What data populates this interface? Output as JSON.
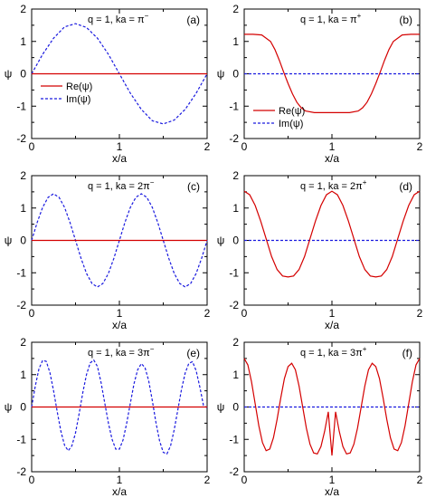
{
  "chart_data": [
    {
      "type": "line",
      "panel_label": "(a)",
      "title_prefix": "q = 1, ka = ",
      "title_math": "π",
      "title_sup": "−",
      "xlabel": "x/a",
      "ylabel": "ψ",
      "xlim": [
        0,
        2
      ],
      "ylim": [
        -2,
        2
      ],
      "xticks": [
        "0",
        "1",
        "2"
      ],
      "yticks": [
        "2",
        "1",
        "0",
        "-1",
        "-2"
      ],
      "legend": {
        "show": true,
        "position": "center-left"
      },
      "series": [
        {
          "name": "Re(ψ)",
          "color": "#d40000",
          "style": "solid",
          "x": [
            0,
            0.25,
            0.5,
            0.75,
            1,
            1.25,
            1.5,
            1.75,
            2
          ],
          "y": [
            0,
            0,
            0,
            0,
            0,
            0,
            0,
            0,
            0
          ]
        },
        {
          "name": "Im(ψ)",
          "color": "#1a1adf",
          "style": "dashed",
          "x": [
            0,
            0.125,
            0.25,
            0.375,
            0.5,
            0.625,
            0.75,
            0.875,
            1,
            1.125,
            1.25,
            1.375,
            1.5,
            1.625,
            1.75,
            1.875,
            2
          ],
          "y": [
            0,
            0.6,
            1.1,
            1.45,
            1.55,
            1.43,
            1.1,
            0.6,
            0,
            -0.6,
            -1.1,
            -1.45,
            -1.55,
            -1.43,
            -1.1,
            -0.6,
            0
          ]
        }
      ]
    },
    {
      "type": "line",
      "panel_label": "(b)",
      "title_prefix": "q = 1, ka = ",
      "title_math": "π",
      "title_sup": "+",
      "xlabel": "x/a",
      "ylabel": "ψ",
      "xlim": [
        0,
        2
      ],
      "ylim": [
        -2,
        2
      ],
      "xticks": [
        "0",
        "1",
        "2"
      ],
      "yticks": [
        "2",
        "1",
        "0",
        "-1",
        "-2"
      ],
      "legend": {
        "show": true,
        "position": "bottom-left"
      },
      "series": [
        {
          "name": "Re(ψ)",
          "color": "#d40000",
          "style": "solid",
          "x": [
            0,
            0.1,
            0.2,
            0.3,
            0.35,
            0.4,
            0.45,
            0.5,
            0.55,
            0.6,
            0.65,
            0.7,
            0.8,
            0.9,
            1,
            1.1,
            1.2,
            1.3,
            1.35,
            1.4,
            1.45,
            1.5,
            1.55,
            1.6,
            1.65,
            1.7,
            1.8,
            1.9,
            2
          ],
          "y": [
            1.22,
            1.22,
            1.2,
            1.0,
            0.75,
            0.42,
            0.05,
            -0.3,
            -0.62,
            -0.88,
            -1.05,
            -1.15,
            -1.2,
            -1.2,
            -1.2,
            -1.2,
            -1.2,
            -1.15,
            -1.05,
            -0.88,
            -0.62,
            -0.3,
            0.05,
            0.42,
            0.75,
            1.0,
            1.2,
            1.22,
            1.22
          ]
        },
        {
          "name": "Im(ψ)",
          "color": "#1a1adf",
          "style": "dashed",
          "x": [
            0,
            0.5,
            1,
            1.5,
            2
          ],
          "y": [
            0,
            0,
            0,
            0,
            0
          ]
        }
      ]
    },
    {
      "type": "line",
      "panel_label": "(c)",
      "title_prefix": "q = 1, ka = ",
      "title_math": "2π",
      "title_sup": "−",
      "xlabel": "x/a",
      "ylabel": "ψ",
      "xlim": [
        0,
        2
      ],
      "ylim": [
        -2,
        2
      ],
      "xticks": [
        "0",
        "1",
        "2"
      ],
      "yticks": [
        "2",
        "1",
        "0",
        "-1",
        "-2"
      ],
      "legend": {
        "show": false
      },
      "series": [
        {
          "name": "Re(ψ)",
          "color": "#d40000",
          "style": "solid",
          "x": [
            0,
            1,
            2
          ],
          "y": [
            0,
            0,
            0
          ]
        },
        {
          "name": "Im(ψ)",
          "color": "#1a1adf",
          "style": "dashed",
          "x": [
            0,
            0.0625,
            0.125,
            0.1875,
            0.25,
            0.3125,
            0.375,
            0.4375,
            0.5,
            0.5625,
            0.625,
            0.6875,
            0.75,
            0.8125,
            0.875,
            0.9375,
            1,
            1.0625,
            1.125,
            1.1875,
            1.25,
            1.3125,
            1.375,
            1.4375,
            1.5,
            1.5625,
            1.625,
            1.6875,
            1.75,
            1.8125,
            1.875,
            1.9375,
            2
          ],
          "y": [
            0,
            0.55,
            1.02,
            1.33,
            1.44,
            1.33,
            1.02,
            0.55,
            0,
            -0.55,
            -1.02,
            -1.33,
            -1.44,
            -1.33,
            -1.02,
            -0.55,
            0,
            0.55,
            1.02,
            1.33,
            1.44,
            1.33,
            1.02,
            0.55,
            0,
            -0.55,
            -1.02,
            -1.33,
            -1.44,
            -1.33,
            -1.02,
            -0.55,
            0
          ]
        }
      ]
    },
    {
      "type": "line",
      "panel_label": "(d)",
      "title_prefix": "q = 1, ka = ",
      "title_math": "2π",
      "title_sup": "+",
      "xlabel": "x/a",
      "ylabel": "ψ",
      "xlim": [
        0,
        2
      ],
      "ylim": [
        -2,
        2
      ],
      "xticks": [
        "0",
        "1",
        "2"
      ],
      "yticks": [
        "2",
        "1",
        "0",
        "-1",
        "-2"
      ],
      "legend": {
        "show": false
      },
      "series": [
        {
          "name": "Re(ψ)",
          "color": "#d40000",
          "style": "solid",
          "x": [
            0,
            0.0625,
            0.125,
            0.1875,
            0.25,
            0.3125,
            0.375,
            0.4375,
            0.5,
            0.5625,
            0.625,
            0.6875,
            0.75,
            0.8125,
            0.875,
            0.9375,
            1,
            1.0625,
            1.125,
            1.1875,
            1.25,
            1.3125,
            1.375,
            1.4375,
            1.5,
            1.5625,
            1.625,
            1.6875,
            1.75,
            1.8125,
            1.875,
            1.9375,
            2
          ],
          "y": [
            1.52,
            1.41,
            1.08,
            0.6,
            0.05,
            -0.5,
            -0.9,
            -1.1,
            -1.13,
            -1.1,
            -0.9,
            -0.5,
            0.05,
            0.6,
            1.08,
            1.41,
            1.52,
            1.41,
            1.08,
            0.6,
            0.05,
            -0.5,
            -0.9,
            -1.1,
            -1.13,
            -1.1,
            -0.9,
            -0.5,
            0.05,
            0.6,
            1.08,
            1.41,
            1.52
          ]
        },
        {
          "name": "Im(ψ)",
          "color": "#1a1adf",
          "style": "dashed",
          "x": [
            0,
            1,
            2
          ],
          "y": [
            0,
            0,
            0
          ]
        }
      ]
    },
    {
      "type": "line",
      "panel_label": "(e)",
      "title_prefix": "q = 1, ka = ",
      "title_math": "3π",
      "title_sup": "−",
      "xlabel": "x/a",
      "ylabel": "ψ",
      "xlim": [
        0,
        2
      ],
      "ylim": [
        -2,
        2
      ],
      "xticks": [
        "0",
        "1",
        "2"
      ],
      "yticks": [
        "2",
        "1",
        "0",
        "-1",
        "-2"
      ],
      "legend": {
        "show": false
      },
      "series": [
        {
          "name": "Re(ψ)",
          "color": "#d40000",
          "style": "solid",
          "x": [
            0,
            1,
            2
          ],
          "y": [
            0,
            0,
            0
          ]
        },
        {
          "name": "Im(ψ)",
          "color": "#1a1adf",
          "style": "dashed",
          "x": [
            0,
            0.0417,
            0.0833,
            0.125,
            0.1667,
            0.2083,
            0.25,
            0.2917,
            0.3333,
            0.375,
            0.4167,
            0.4583,
            0.5,
            0.5417,
            0.5833,
            0.625,
            0.6667,
            0.7083,
            0.75,
            0.7917,
            0.8333,
            0.875,
            0.9167,
            0.9583,
            1,
            1.0417,
            1.0833,
            1.125,
            1.1667,
            1.2083,
            1.25,
            1.2917,
            1.3333,
            1.375,
            1.4167,
            1.4583,
            1.5,
            1.5417,
            1.5833,
            1.625,
            1.6667,
            1.7083,
            1.75,
            1.7917,
            1.8333,
            1.875,
            1.9167,
            1.9583,
            2
          ],
          "y": [
            0,
            0.65,
            1.18,
            1.44,
            1.41,
            1.06,
            0.5,
            -0.15,
            -0.75,
            -1.18,
            -1.35,
            -1.2,
            -0.8,
            -0.2,
            0.45,
            1.0,
            1.36,
            1.45,
            1.25,
            0.75,
            0.12,
            -0.5,
            -1.0,
            -1.3,
            -1.3,
            -1.02,
            -0.5,
            0.12,
            0.72,
            1.15,
            1.34,
            1.22,
            0.82,
            0.2,
            -0.48,
            -1.05,
            -1.4,
            -1.45,
            -1.2,
            -0.7,
            -0.08,
            0.55,
            1.05,
            1.35,
            1.4,
            1.12,
            0.62,
            0.05,
            -0.02
          ]
        }
      ]
    },
    {
      "type": "line",
      "panel_label": "(f)",
      "title_prefix": "q = 1, ka = ",
      "title_math": "3π",
      "title_sup": "+",
      "xlabel": "x/a",
      "ylabel": "ψ",
      "xlim": [
        0,
        2
      ],
      "ylim": [
        -2,
        2
      ],
      "xticks": [
        "0",
        "1",
        "2"
      ],
      "yticks": [
        "2",
        "1",
        "0",
        "-1",
        "-2"
      ],
      "legend": {
        "show": false
      },
      "series": [
        {
          "name": "Re(ψ)",
          "color": "#d40000",
          "style": "solid",
          "x": [
            0,
            0.0417,
            0.0833,
            0.125,
            0.1667,
            0.2083,
            0.25,
            0.2917,
            0.3333,
            0.375,
            0.4167,
            0.4583,
            0.5,
            0.5417,
            0.5833,
            0.625,
            0.6667,
            0.7083,
            0.75,
            0.7917,
            0.8333,
            0.875,
            0.9167,
            0.9583,
            1,
            1.0417,
            1.0833,
            1.125,
            1.1667,
            1.2083,
            1.25,
            1.2917,
            1.3333,
            1.375,
            1.4167,
            1.4583,
            1.5,
            1.5417,
            1.5833,
            1.625,
            1.6667,
            1.7083,
            1.75,
            1.7917,
            1.8333,
            1.875,
            1.9167,
            1.9583,
            2
          ],
          "y": [
            1.5,
            1.3,
            0.78,
            0.1,
            -0.58,
            -1.1,
            -1.35,
            -1.3,
            -0.95,
            -0.38,
            0.28,
            0.88,
            1.25,
            1.35,
            1.15,
            0.65,
            0.0,
            -0.65,
            -1.15,
            -1.42,
            -1.45,
            -1.22,
            -0.75,
            -0.15,
            -1.5,
            -0.15,
            -0.75,
            -1.22,
            -1.45,
            -1.42,
            -1.15,
            -0.65,
            0.0,
            0.65,
            1.15,
            1.35,
            1.25,
            0.88,
            0.28,
            -0.38,
            -0.95,
            -1.3,
            -1.35,
            -1.1,
            -0.58,
            0.1,
            0.78,
            1.3,
            1.5
          ]
        },
        {
          "name": "Im(ψ)",
          "color": "#1a1adf",
          "style": "dashed",
          "x": [
            0,
            1,
            2
          ],
          "y": [
            0,
            0,
            0
          ]
        }
      ]
    }
  ]
}
